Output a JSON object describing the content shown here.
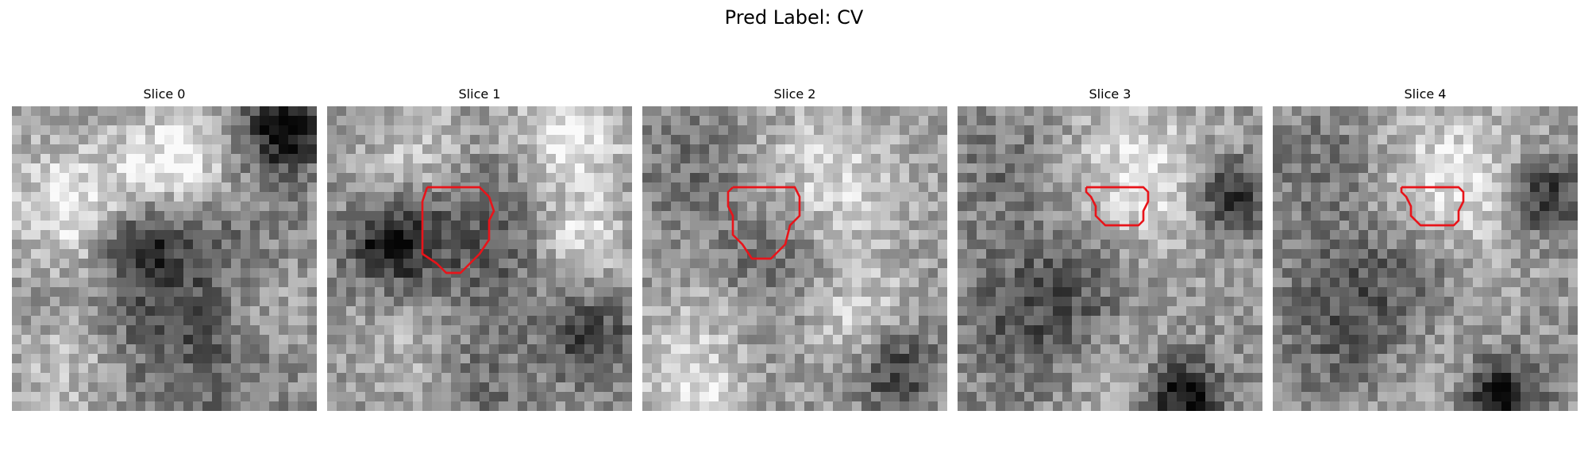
{
  "figure": {
    "title": "Pred Label: CV"
  },
  "slices": [
    {
      "title": "Slice 0",
      "has_contour": false
    },
    {
      "title": "Slice 1",
      "has_contour": true
    },
    {
      "title": "Slice 2",
      "has_contour": true
    },
    {
      "title": "Slice 3",
      "has_contour": true
    },
    {
      "title": "Slice 4",
      "has_contour": true
    }
  ],
  "colors": {
    "background": "#ffffff",
    "contour": "#e8141a",
    "text": "#000000"
  }
}
